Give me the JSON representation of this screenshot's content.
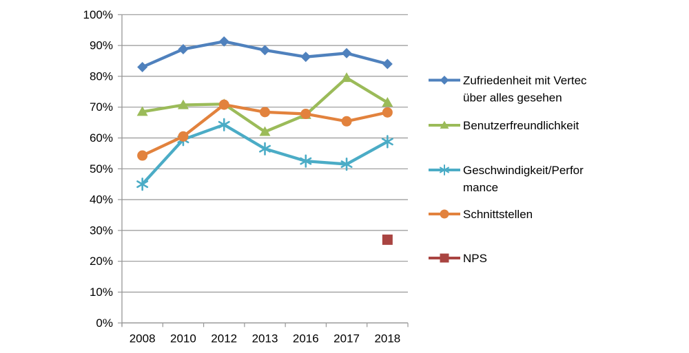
{
  "chart_data": {
    "type": "line",
    "title": "",
    "categories": [
      "2008",
      "2010",
      "2012",
      "2013",
      "2016",
      "2017",
      "2018"
    ],
    "y_axis": {
      "min": 0,
      "max": 100,
      "step": 10,
      "tick_labels": [
        "0%",
        "10%",
        "20%",
        "30%",
        "40%",
        "50%",
        "60%",
        "70%",
        "80%",
        "90%",
        "100%"
      ]
    },
    "grid": true,
    "legend_position": "right",
    "series": [
      {
        "id": "zufriedenheit",
        "name": "Zufriedenheit mit Vertec über alles gesehen",
        "legend_lines": [
          "Zufriedenheit mit Vertec",
          "über alles gesehen"
        ],
        "marker": "diamond",
        "color": "#4F81BD",
        "values": [
          83,
          88.8,
          91.3,
          88.5,
          86.3,
          87.5,
          84
        ]
      },
      {
        "id": "benutzerfreundlichkeit",
        "name": "Benutzerfreundlichkeit",
        "legend_lines": [
          "Benutzerfreundlichkeit"
        ],
        "marker": "triangle",
        "color": "#9BBB59",
        "values": [
          68.5,
          70.7,
          71,
          62,
          67.5,
          79.5,
          71.5
        ]
      },
      {
        "id": "geschwindigkeit",
        "name": "Geschwindigkeit/Performance",
        "legend_lines": [
          "Geschwindigkeit/Perfor",
          "mance"
        ],
        "marker": "asterisk",
        "color": "#4BACC6",
        "values": [
          45,
          59.5,
          64.3,
          56.5,
          52.5,
          51.5,
          58.8
        ]
      },
      {
        "id": "schnittstellen",
        "name": "Schnittstellen",
        "legend_lines": [
          "Schnittstellen"
        ],
        "marker": "circle",
        "color": "#E2823D",
        "values": [
          54.3,
          60.5,
          70.8,
          68.4,
          67.8,
          65.4,
          68.3
        ]
      },
      {
        "id": "nps",
        "name": "NPS",
        "legend_lines": [
          "NPS"
        ],
        "marker": "square",
        "color": "#A94441",
        "values": [
          null,
          null,
          null,
          null,
          null,
          null,
          27
        ]
      }
    ]
  },
  "colors": {
    "axis": "#969696",
    "gridline": "#969696",
    "text": "#000000",
    "background": "#FFFFFF"
  }
}
